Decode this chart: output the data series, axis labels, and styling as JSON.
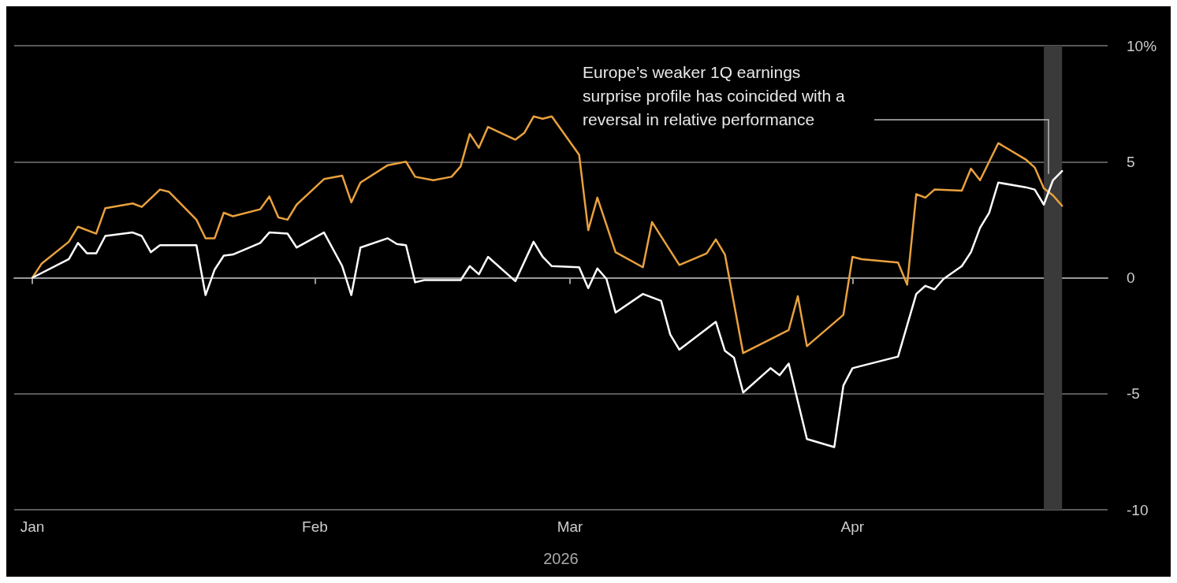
{
  "chart_data": {
    "type": "line",
    "xlabel": "2026",
    "annotations": [
      "Europe’s weaker 1Q earnings surprise profile has coincided with a reversal in relative performance"
    ],
    "xlim": [
      "2025-12-30",
      "2026-04-29"
    ],
    "xticks": [
      {
        "value": "2026-01-01",
        "label": "Jan"
      },
      {
        "value": "2026-02-01",
        "label": "Feb"
      },
      {
        "value": "2026-03-01",
        "label": "Mar"
      },
      {
        "value": "2026-04-01",
        "label": "Apr"
      }
    ],
    "ylim": [
      -10,
      10
    ],
    "yticks": [
      {
        "value": 10,
        "label": "10%"
      },
      5,
      0,
      -5,
      -10
    ],
    "grid": "y",
    "marker": "none",
    "line_style": "solid",
    "bands": [
      {
        "axis": "x",
        "from": "2026-04-22",
        "to": "2026-04-24",
        "color": "#3a3a3a"
      }
    ],
    "series": [
      {
        "color": "#e9a13e",
        "x": [
          "2026-01-01",
          "2026-01-02",
          "2026-01-05",
          "2026-01-06",
          "2026-01-08",
          "2026-01-09",
          "2026-01-12",
          "2026-01-13",
          "2026-01-15",
          "2026-01-16",
          "2026-01-19",
          "2026-01-20",
          "2026-01-21",
          "2026-01-22",
          "2026-01-23",
          "2026-01-26",
          "2026-01-27",
          "2026-01-28",
          "2026-01-29",
          "2026-01-30",
          "2026-02-02",
          "2026-02-04",
          "2026-02-05",
          "2026-02-06",
          "2026-02-09",
          "2026-02-11",
          "2026-02-12",
          "2026-02-14",
          "2026-02-16",
          "2026-02-17",
          "2026-02-18",
          "2026-02-19",
          "2026-02-20",
          "2026-02-23",
          "2026-02-24",
          "2026-02-25",
          "2026-02-26",
          "2026-02-27",
          "2026-03-02",
          "2026-03-03",
          "2026-03-04",
          "2026-03-06",
          "2026-03-09",
          "2026-03-10",
          "2026-03-13",
          "2026-03-16",
          "2026-03-17",
          "2026-03-18",
          "2026-03-20",
          "2026-03-23",
          "2026-03-25",
          "2026-03-26",
          "2026-03-27",
          "2026-03-31",
          "2026-04-01",
          "2026-04-02",
          "2026-04-06",
          "2026-04-07",
          "2026-04-08",
          "2026-04-09",
          "2026-04-10",
          "2026-04-13",
          "2026-04-14",
          "2026-04-15",
          "2026-04-17",
          "2026-04-20",
          "2026-04-21",
          "2026-04-22",
          "2026-04-23",
          "2026-04-24"
        ],
        "values": [
          0,
          0.6,
          1.55,
          2.2,
          1.9,
          3.0,
          3.2,
          3.05,
          3.8,
          3.7,
          2.5,
          1.7,
          1.7,
          2.8,
          2.65,
          2.95,
          3.5,
          2.6,
          2.5,
          3.15,
          4.25,
          4.4,
          3.25,
          4.1,
          4.85,
          5.0,
          4.35,
          4.2,
          4.35,
          4.8,
          6.2,
          5.6,
          6.5,
          5.95,
          6.25,
          6.95,
          6.85,
          6.95,
          5.3,
          2.05,
          3.45,
          1.1,
          0.45,
          2.4,
          0.55,
          1.05,
          1.65,
          1.0,
          -3.25,
          -2.65,
          -2.25,
          -0.8,
          -2.95,
          -1.6,
          0.9,
          0.8,
          0.65,
          -0.3,
          3.6,
          3.45,
          3.8,
          3.75,
          4.7,
          4.2,
          5.8,
          5.1,
          4.75,
          3.85,
          3.55,
          3.1
        ]
      },
      {
        "color": "#ffffff",
        "x": [
          "2026-01-01",
          "2026-01-05",
          "2026-01-06",
          "2026-01-07",
          "2026-01-08",
          "2026-01-09",
          "2026-01-12",
          "2026-01-13",
          "2026-01-14",
          "2026-01-15",
          "2026-01-19",
          "2026-01-20",
          "2026-01-21",
          "2026-01-22",
          "2026-01-23",
          "2026-01-26",
          "2026-01-27",
          "2026-01-29",
          "2026-01-30",
          "2026-02-02",
          "2026-02-04",
          "2026-02-05",
          "2026-02-06",
          "2026-02-09",
          "2026-02-10",
          "2026-02-11",
          "2026-02-12",
          "2026-02-13",
          "2026-02-17",
          "2026-02-18",
          "2026-02-19",
          "2026-02-20",
          "2026-02-23",
          "2026-02-25",
          "2026-02-26",
          "2026-02-27",
          "2026-03-02",
          "2026-03-03",
          "2026-03-04",
          "2026-03-05",
          "2026-03-06",
          "2026-03-09",
          "2026-03-11",
          "2026-03-12",
          "2026-03-13",
          "2026-03-17",
          "2026-03-18",
          "2026-03-19",
          "2026-03-20",
          "2026-03-23",
          "2026-03-24",
          "2026-03-25",
          "2026-03-27",
          "2026-03-30",
          "2026-03-31",
          "2026-04-01",
          "2026-04-02",
          "2026-04-06",
          "2026-04-08",
          "2026-04-09",
          "2026-04-10",
          "2026-04-11",
          "2026-04-13",
          "2026-04-14",
          "2026-04-15",
          "2026-04-16",
          "2026-04-17",
          "2026-04-20",
          "2026-04-21",
          "2026-04-22",
          "2026-04-23",
          "2026-04-24"
        ],
        "values": [
          0,
          0.8,
          1.5,
          1.05,
          1.05,
          1.8,
          1.95,
          1.8,
          1.1,
          1.4,
          1.4,
          -0.75,
          0.35,
          0.95,
          1.0,
          1.5,
          1.95,
          1.9,
          1.3,
          1.95,
          0.5,
          -0.75,
          1.3,
          1.7,
          1.45,
          1.4,
          -0.2,
          -0.1,
          -0.1,
          0.5,
          0.15,
          0.9,
          -0.15,
          1.55,
          0.9,
          0.5,
          0.45,
          -0.45,
          0.4,
          -0.05,
          -1.5,
          -0.7,
          -1.0,
          -2.45,
          -3.1,
          -1.9,
          -3.15,
          -3.45,
          -4.95,
          -3.9,
          -4.2,
          -3.7,
          -6.95,
          -7.3,
          -4.65,
          -3.9,
          -3.8,
          -3.4,
          -0.7,
          -0.35,
          -0.5,
          -0.05,
          0.5,
          1.1,
          2.15,
          2.8,
          4.1,
          3.9,
          3.8,
          3.15,
          4.2,
          4.6
        ]
      }
    ]
  }
}
